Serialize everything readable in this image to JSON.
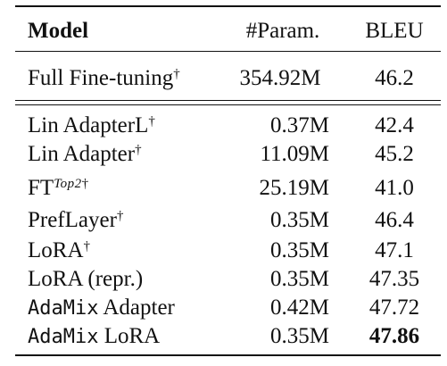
{
  "table": {
    "header": {
      "model": "Model",
      "param": "#Param.",
      "bleu": "BLEU"
    },
    "full_ft": {
      "model": "Full Fine-tuning",
      "dagger": "†",
      "param": "354.92M",
      "bleu": "46.2"
    },
    "rows": [
      {
        "model": "Lin AdapterL",
        "dagger": "†",
        "param": "0.37M",
        "bleu": "42.4"
      },
      {
        "model": "Lin Adapter",
        "dagger": "†",
        "param": "11.09M",
        "bleu": "45.2"
      },
      {
        "model": "FT",
        "sup_italic": "Top2",
        "dagger": "†",
        "param": "25.19M",
        "bleu": "41.0"
      },
      {
        "model": "PrefLayer",
        "dagger": "†",
        "param": "0.35M",
        "bleu": "46.4"
      },
      {
        "model": "LoRA",
        "dagger": "†",
        "param": "0.35M",
        "bleu": "47.1"
      },
      {
        "model": "LoRA (repr.)",
        "param": "0.35M",
        "bleu": "47.35"
      },
      {
        "model_mono": "AdaMix",
        "model_rest": " Adapter",
        "param": "0.42M",
        "bleu": "47.72"
      },
      {
        "model_mono": "AdaMix",
        "model_rest": " LoRA",
        "param": "0.35M",
        "bleu": "47.86",
        "bleu_bold": true
      }
    ]
  }
}
